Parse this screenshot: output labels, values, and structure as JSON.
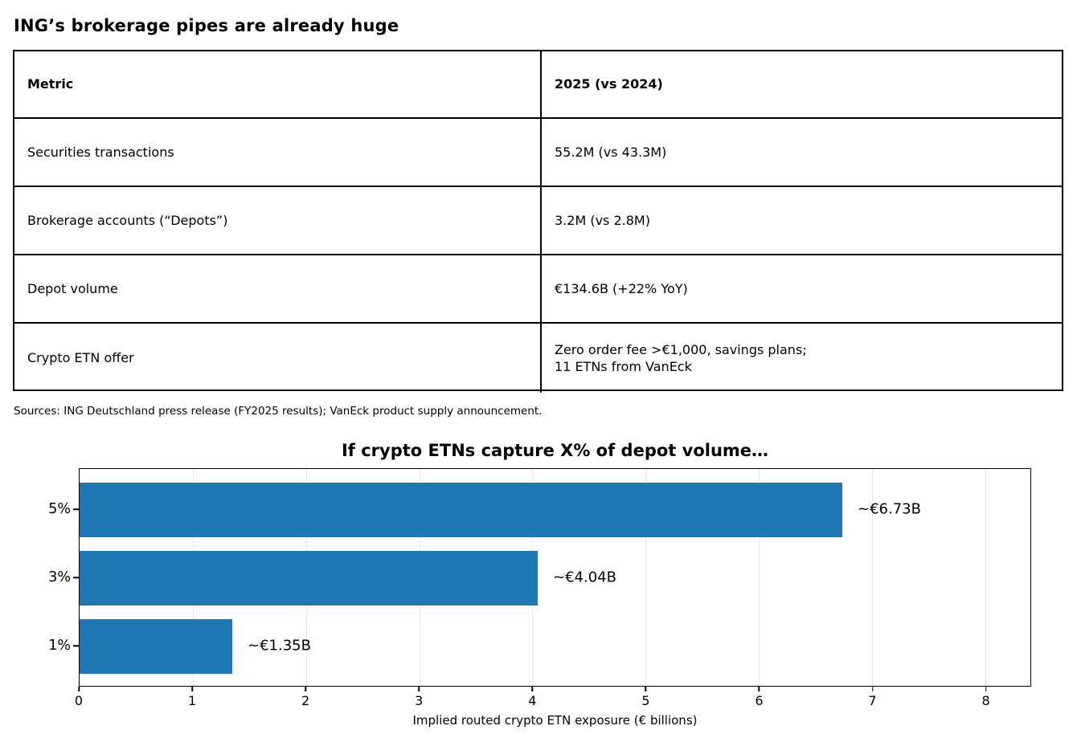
{
  "table_section": {
    "title": "ING’s brokerage pipes are already huge",
    "columns": [
      "Metric",
      "2025 (vs 2024)"
    ],
    "rows": [
      {
        "metric": "Securities transactions",
        "value": "55.2M (vs 43.3M)"
      },
      {
        "metric": "Brokerage accounts (“Depots”)",
        "value": "3.2M (vs 2.8M)"
      },
      {
        "metric": "Depot volume",
        "value": "€134.6B (+22% YoY)"
      },
      {
        "metric": "Crypto ETN offer",
        "value": "Zero order fee >€1,000, savings plans;\n11 ETNs from VanEck"
      }
    ],
    "source_note": "Sources: ING Deutschland press release (FY2025 results); VanEck product supply announcement."
  },
  "chart_data": {
    "type": "bar",
    "orientation": "horizontal",
    "title": "If crypto ETNs capture X% of depot volume…",
    "categories": [
      "5%",
      "3%",
      "1%"
    ],
    "values": [
      6.73,
      4.04,
      1.35
    ],
    "bar_labels": [
      "~€6.73B",
      "~€4.04B",
      "~€1.35B"
    ],
    "xlabel": "Implied routed crypto ETN exposure (€ billions)",
    "x_ticks": [
      0,
      1,
      2,
      3,
      4,
      5,
      6,
      7,
      8
    ],
    "xlim": [
      0,
      8.4
    ],
    "bar_color": "#1f77b4",
    "grid": true,
    "gridline_color": "#e8e8e8",
    "legend": "none"
  }
}
